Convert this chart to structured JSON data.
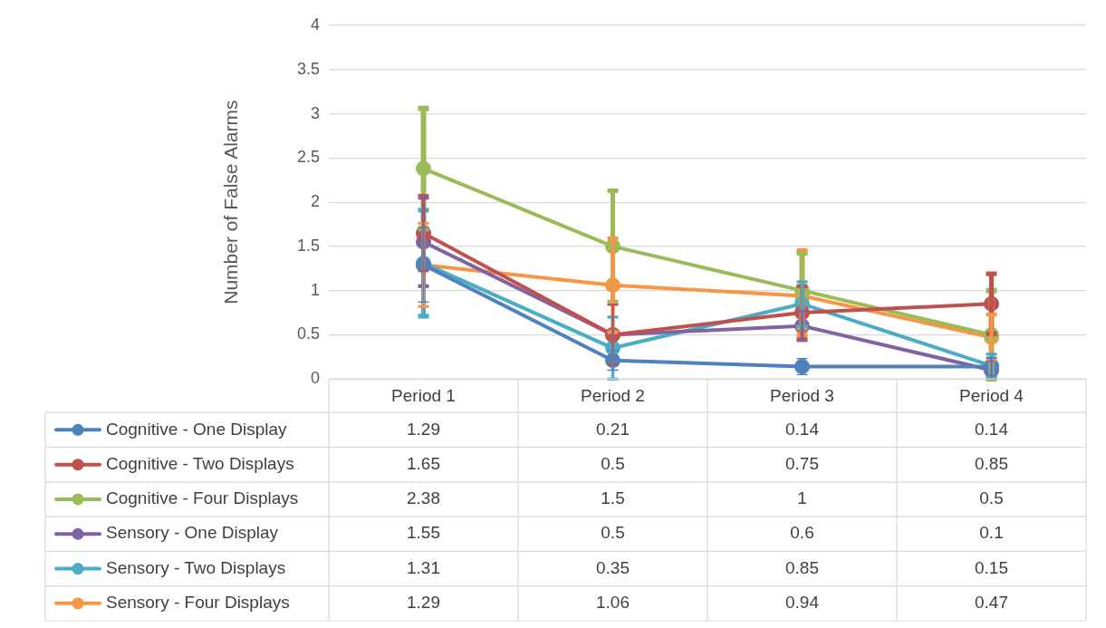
{
  "chart_data": {
    "type": "line",
    "ylabel": "Number of False Alarms",
    "categories": [
      "Period 1",
      "Period 2",
      "Period 3",
      "Period 4"
    ],
    "series": [
      {
        "name": "Cognitive - One Display",
        "color": "#4f81bd",
        "values": [
          1.29,
          0.21,
          0.14,
          0.14
        ],
        "errors": [
          0.42,
          0.11,
          0.09,
          0.1
        ]
      },
      {
        "name": "Cognitive - Two Displays",
        "color": "#c0504d",
        "values": [
          1.65,
          0.5,
          0.75,
          0.85
        ],
        "errors": [
          0.43,
          0.34,
          0.3,
          0.34
        ]
      },
      {
        "name": "Cognitive - Four Displays",
        "color": "#9bbb59",
        "values": [
          2.38,
          1.5,
          1,
          0.5
        ],
        "errors": [
          0.68,
          0.63,
          0.42,
          0.5
        ]
      },
      {
        "name": "Sensory - One Display",
        "color": "#8064a2",
        "values": [
          1.55,
          0.5,
          0.6,
          0.1
        ],
        "errors": [
          0.5,
          null,
          0.17,
          0.1
        ]
      },
      {
        "name": "Sensory - Two Displays",
        "color": "#4bacc6",
        "values": [
          1.31,
          0.35,
          0.85,
          0.15
        ],
        "errors": [
          0.6,
          0.35,
          0.25,
          0.13
        ]
      },
      {
        "name": "Sensory - Four Displays",
        "color": "#f79646",
        "values": [
          1.29,
          1.06,
          0.94,
          0.47
        ],
        "errors": [
          0.47,
          0.53,
          [
            0.5,
            1.45
          ],
          0.26
        ]
      }
    ],
    "ylim": [
      0,
      4
    ],
    "yticks": [
      0,
      0.5,
      1,
      1.5,
      2,
      2.5,
      3,
      3.5,
      4
    ],
    "grid": "y",
    "legend": "bottom",
    "marker": "circle",
    "line_style": "solid",
    "data_labels": true
  }
}
